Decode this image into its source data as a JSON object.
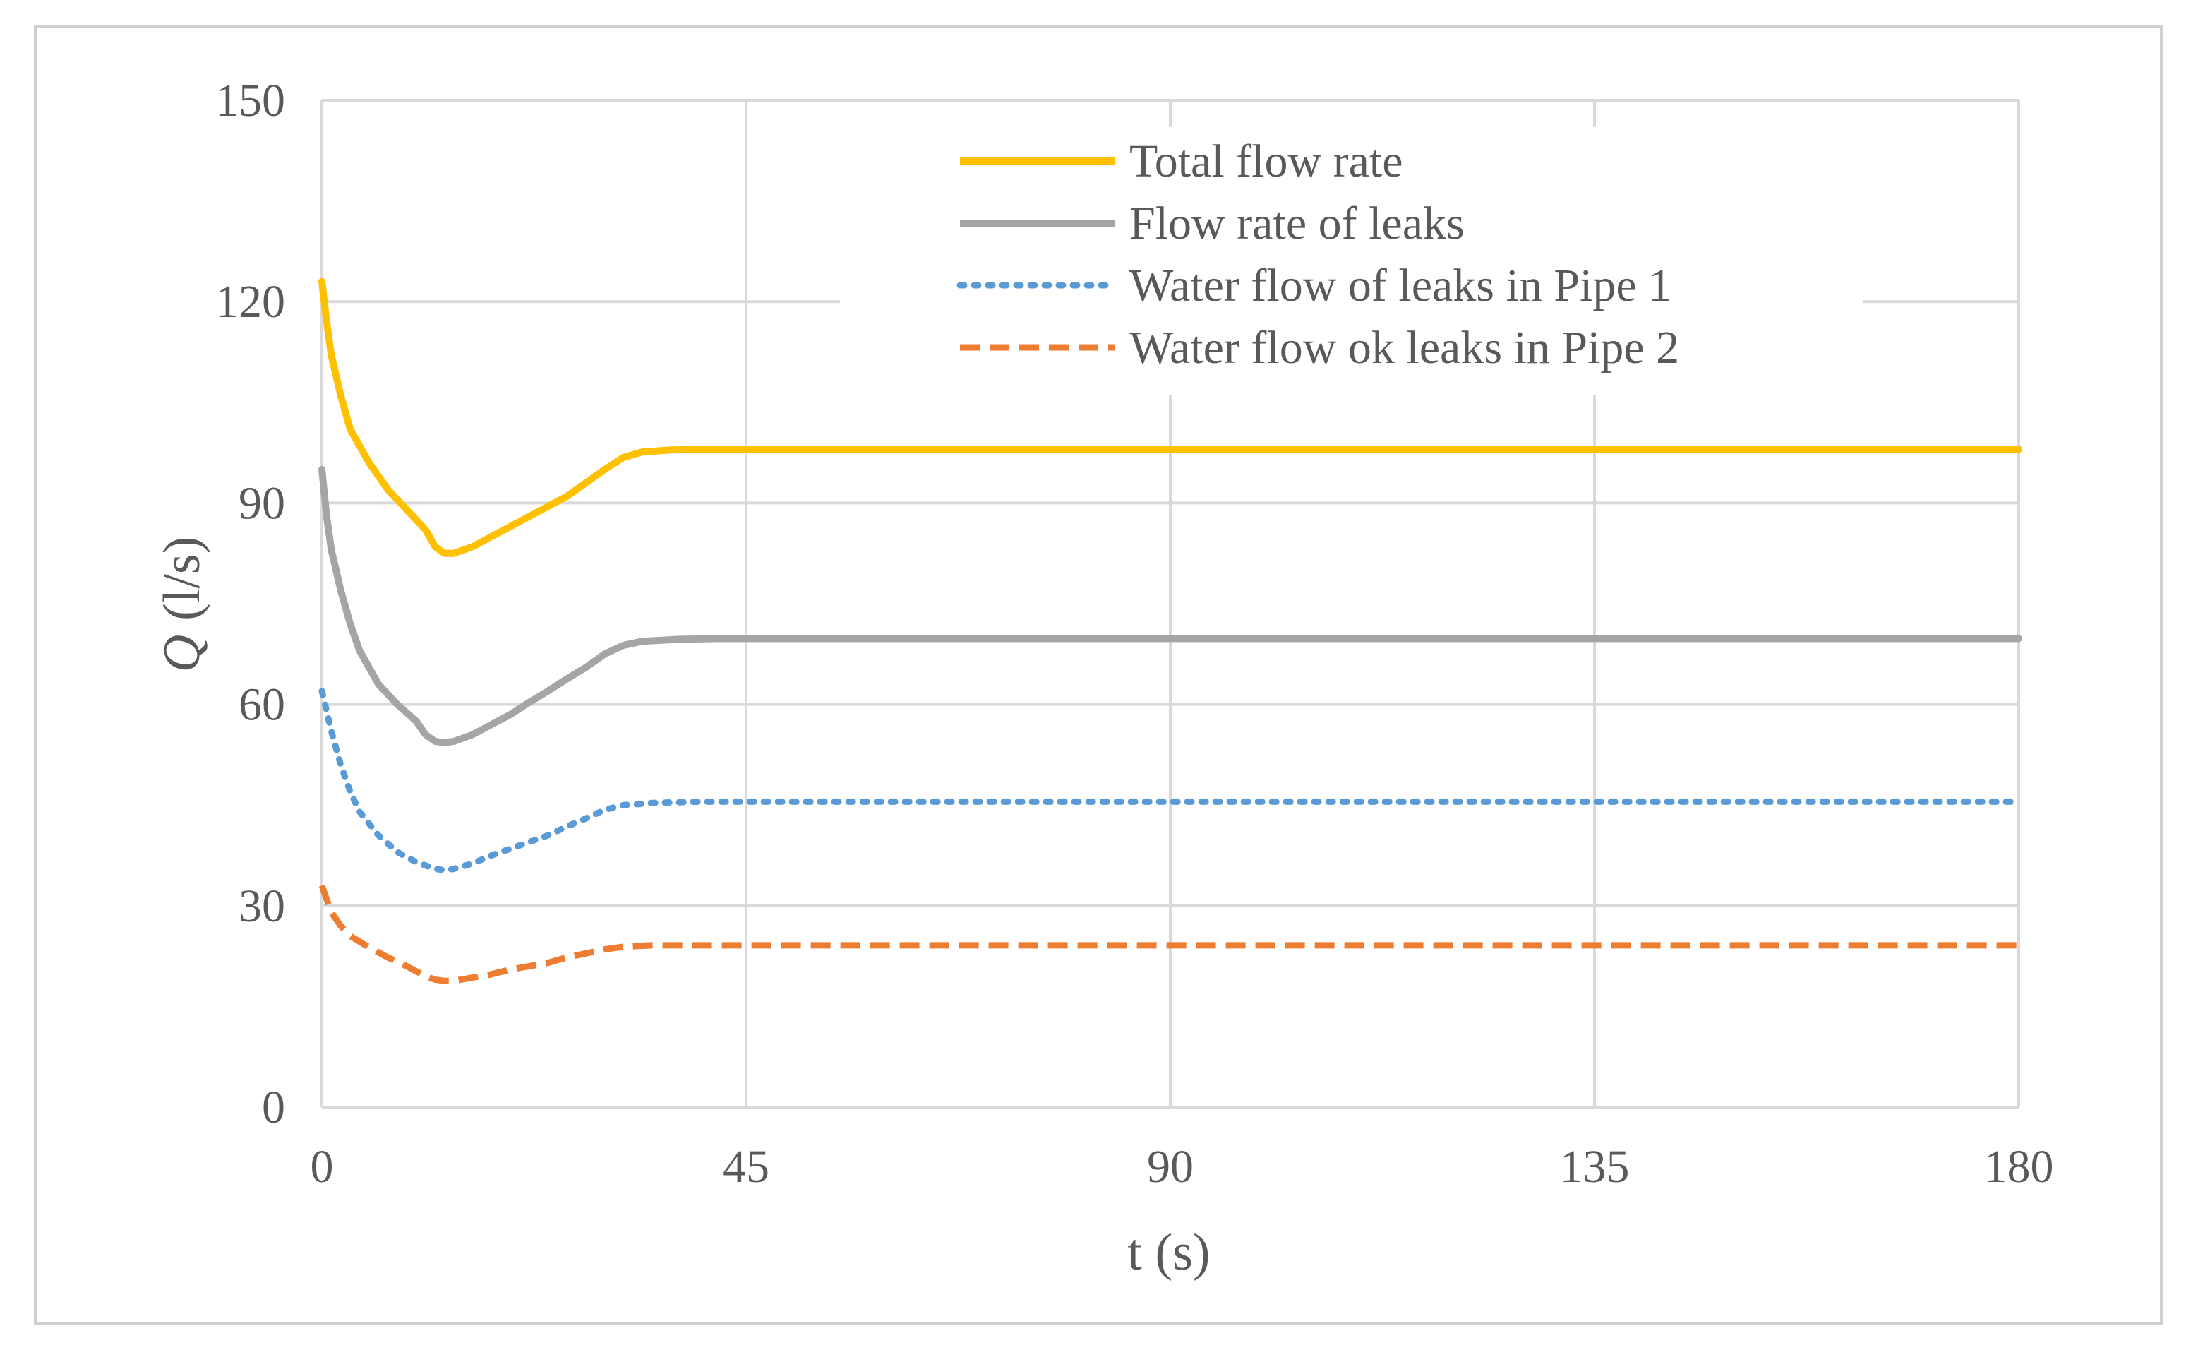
{
  "chart_data": {
    "type": "line",
    "xlabel": "t (s)",
    "ylabel_symbol": "Q",
    "ylabel_unit": "(l/s)",
    "xlim": [
      0,
      180
    ],
    "ylim": [
      0,
      150
    ],
    "xticks": [
      0,
      45,
      90,
      135,
      180
    ],
    "yticks": [
      0,
      30,
      60,
      90,
      120,
      150
    ],
    "grid": true,
    "legend_position": "top-right",
    "series": [
      {
        "name": "Total flow rate",
        "color": "#FFC000",
        "style": "solid",
        "points": [
          [
            0,
            123
          ],
          [
            0.5,
            117
          ],
          [
            1,
            112
          ],
          [
            2,
            106
          ],
          [
            3,
            101
          ],
          [
            5,
            96
          ],
          [
            7,
            92
          ],
          [
            9,
            89
          ],
          [
            11,
            86
          ],
          [
            12,
            83.5
          ],
          [
            13,
            82.5
          ],
          [
            14,
            82.5
          ],
          [
            16,
            83.5
          ],
          [
            18,
            85
          ],
          [
            20,
            86.5
          ],
          [
            22,
            88
          ],
          [
            24,
            89.5
          ],
          [
            26,
            91
          ],
          [
            28,
            93
          ],
          [
            30,
            95
          ],
          [
            32,
            96.8
          ],
          [
            34,
            97.6
          ],
          [
            37,
            97.9
          ],
          [
            42,
            98
          ],
          [
            60,
            98
          ],
          [
            90,
            98
          ],
          [
            120,
            98
          ],
          [
            150,
            98
          ],
          [
            180,
            98
          ]
        ]
      },
      {
        "name": "Flow rate of leaks",
        "color": "#A5A5A5",
        "style": "solid",
        "points": [
          [
            0,
            95
          ],
          [
            0.5,
            88
          ],
          [
            1,
            83
          ],
          [
            2,
            77
          ],
          [
            3,
            72
          ],
          [
            4,
            68
          ],
          [
            6,
            63
          ],
          [
            8,
            60
          ],
          [
            10,
            57.5
          ],
          [
            11,
            55.5
          ],
          [
            12,
            54.5
          ],
          [
            13,
            54.3
          ],
          [
            14,
            54.5
          ],
          [
            16,
            55.5
          ],
          [
            18,
            57
          ],
          [
            20,
            58.5
          ],
          [
            22,
            60.3
          ],
          [
            24,
            62
          ],
          [
            26,
            63.8
          ],
          [
            28,
            65.5
          ],
          [
            30,
            67.5
          ],
          [
            32,
            68.8
          ],
          [
            34,
            69.4
          ],
          [
            38,
            69.7
          ],
          [
            42,
            69.8
          ],
          [
            60,
            69.8
          ],
          [
            90,
            69.8
          ],
          [
            120,
            69.8
          ],
          [
            150,
            69.8
          ],
          [
            180,
            69.8
          ]
        ]
      },
      {
        "name": "Water flow of leaks in Pipe 1",
        "color": "#5B9BD5",
        "style": "dotted",
        "points": [
          [
            0,
            62
          ],
          [
            1,
            56
          ],
          [
            2,
            51
          ],
          [
            3,
            47
          ],
          [
            4,
            44
          ],
          [
            6,
            40.5
          ],
          [
            8,
            38
          ],
          [
            10,
            36.5
          ],
          [
            12,
            35.5
          ],
          [
            13,
            35.3
          ],
          [
            14,
            35.5
          ],
          [
            16,
            36.3
          ],
          [
            18,
            37.5
          ],
          [
            20,
            38.5
          ],
          [
            22,
            39.5
          ],
          [
            24,
            40.5
          ],
          [
            26,
            41.8
          ],
          [
            28,
            43
          ],
          [
            30,
            44.3
          ],
          [
            32,
            45
          ],
          [
            35,
            45.3
          ],
          [
            40,
            45.5
          ],
          [
            60,
            45.5
          ],
          [
            90,
            45.5
          ],
          [
            120,
            45.5
          ],
          [
            150,
            45.5
          ],
          [
            180,
            45.5
          ]
        ]
      },
      {
        "name": "Water flow ok leaks in Pipe 2",
        "color": "#ED7D31",
        "style": "dashed",
        "points": [
          [
            0,
            33
          ],
          [
            1,
            29
          ],
          [
            2,
            27
          ],
          [
            3,
            25.5
          ],
          [
            5,
            23.8
          ],
          [
            7,
            22.3
          ],
          [
            9,
            21
          ],
          [
            11,
            19.5
          ],
          [
            12,
            19
          ],
          [
            13,
            18.8
          ],
          [
            14,
            18.8
          ],
          [
            16,
            19.3
          ],
          [
            18,
            19.8
          ],
          [
            20,
            20.5
          ],
          [
            22,
            21
          ],
          [
            24,
            21.5
          ],
          [
            26,
            22.3
          ],
          [
            28,
            22.9
          ],
          [
            30,
            23.5
          ],
          [
            32,
            23.9
          ],
          [
            35,
            24.1
          ],
          [
            40,
            24.1
          ],
          [
            60,
            24.1
          ],
          [
            90,
            24.1
          ],
          [
            120,
            24.1
          ],
          [
            150,
            24.1
          ],
          [
            180,
            24.1
          ]
        ]
      }
    ]
  }
}
